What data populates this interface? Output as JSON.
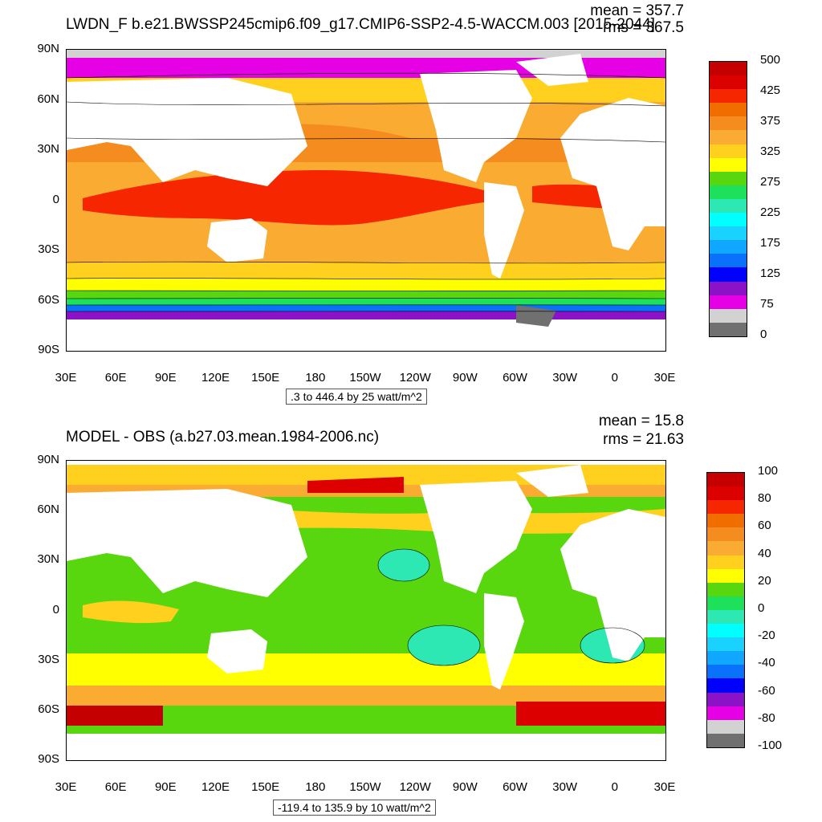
{
  "top": {
    "title": "LWDN_F b.e21.BWSSP245cmip6.f09_g17.CMIP6-SSP2-4.5-WACCM.003 [2015-2044]",
    "mean": "mean = 357.7",
    "rms": "rms = 367.5",
    "range": ".3 to 446.4 by 25 watt/m^2",
    "colorbar": {
      "colors": [
        "#c40000",
        "#dd0000",
        "#f52600",
        "#f26d00",
        "#f58c1f",
        "#f9ab32",
        "#ffd01e",
        "#ffff00",
        "#58d60e",
        "#1de05b",
        "#2ee8b4",
        "#00ffff",
        "#1ad2ff",
        "#0fa7ff",
        "#0a72fa",
        "#0000ff",
        "#8c12c8",
        "#e600e6",
        "#d2d2d2",
        "#707070"
      ],
      "labels": [
        "500",
        "425",
        "375",
        "325",
        "275",
        "225",
        "175",
        "125",
        "75",
        "0"
      ]
    }
  },
  "bottom": {
    "title": "MODEL - OBS (a.b27.03.mean.1984-2006.nc)",
    "mean": "mean = 15.8",
    "rms": "rms = 21.63",
    "range": "-119.4 to 135.9 by 10 watt/m^2",
    "colorbar": {
      "colors": [
        "#c40000",
        "#dd0000",
        "#f52600",
        "#f26d00",
        "#f58c1f",
        "#f9ab32",
        "#ffd01e",
        "#ffff00",
        "#58d60e",
        "#1de05b",
        "#2ee8b4",
        "#00ffff",
        "#1ad2ff",
        "#0fa7ff",
        "#0a72fa",
        "#0000ff",
        "#8c12c8",
        "#e600e6",
        "#d2d2d2",
        "#707070"
      ],
      "labels": [
        "100",
        "80",
        "60",
        "40",
        "20",
        "0",
        "-20",
        "-40",
        "-60",
        "-80",
        "-100"
      ]
    }
  },
  "axes": {
    "lat_labels": [
      "90N",
      "60N",
      "30N",
      "0",
      "30S",
      "60S",
      "90S"
    ],
    "lon_labels": [
      "30E",
      "60E",
      "90E",
      "120E",
      "150E",
      "180",
      "150W",
      "120W",
      "90W",
      "60W",
      "30W",
      "0",
      "30E"
    ]
  },
  "colors": {
    "land": "#ffffff",
    "ice": "#d2d2d2",
    "contour": "#000000"
  }
}
